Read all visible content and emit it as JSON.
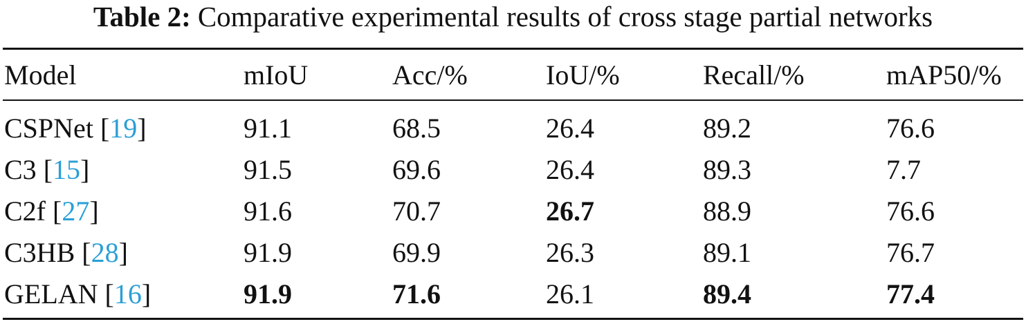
{
  "caption": {
    "label": "Table 2:",
    "text": "Comparative experimental results of cross stage partial networks"
  },
  "colors": {
    "citation": "#2a9fd6",
    "text": "#111111"
  },
  "headers": [
    "Model",
    "mIoU",
    "Acc/%",
    "IoU/%",
    "Recall/%",
    "mAP50/%"
  ],
  "rows": [
    {
      "name": "CSPNet",
      "ref": "19",
      "cells": [
        "91.1",
        "68.5",
        "26.4",
        "89.2",
        "76.6"
      ],
      "bold": [
        false,
        false,
        false,
        false,
        false
      ]
    },
    {
      "name": "C3",
      "ref": "15",
      "cells": [
        "91.5",
        "69.6",
        "26.4",
        "89.3",
        "7.7"
      ],
      "bold": [
        false,
        false,
        false,
        false,
        false
      ]
    },
    {
      "name": "C2f",
      "ref": "27",
      "cells": [
        "91.6",
        "70.7",
        "26.7",
        "88.9",
        "76.6"
      ],
      "bold": [
        false,
        false,
        true,
        false,
        false
      ]
    },
    {
      "name": "C3HB",
      "ref": "28",
      "cells": [
        "91.9",
        "69.9",
        "26.3",
        "89.1",
        "76.7"
      ],
      "bold": [
        false,
        false,
        false,
        false,
        false
      ]
    },
    {
      "name": "GELAN",
      "ref": "16",
      "cells": [
        "91.9",
        "71.6",
        "26.1",
        "89.4",
        "77.4"
      ],
      "bold": [
        true,
        true,
        false,
        true,
        true
      ]
    }
  ]
}
